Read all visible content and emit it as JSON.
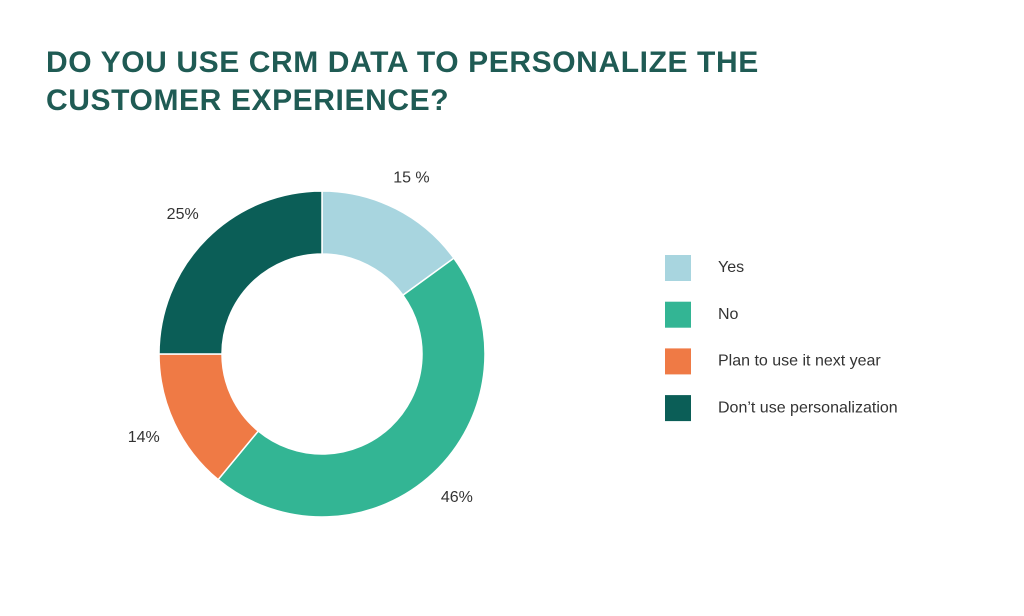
{
  "chart_data": {
    "type": "donut",
    "title": "DO YOU USE CRM DATA TO PERSONALIZE THE CUSTOMER EXPERIENCE?",
    "categories": [
      "Yes",
      "No",
      "Plan to use it next year",
      "Don’t use personalization"
    ],
    "values": [
      15,
      46,
      14,
      25
    ],
    "value_labels": [
      "15 %",
      "46%",
      "14%",
      "25%"
    ],
    "colors": [
      "#a8d5df",
      "#33b594",
      "#ef7a45",
      "#0b5e57"
    ],
    "legend": "right"
  }
}
